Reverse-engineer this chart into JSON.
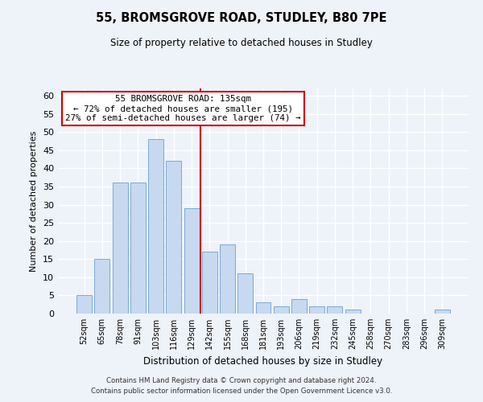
{
  "title": "55, BROMSGROVE ROAD, STUDLEY, B80 7PE",
  "subtitle": "Size of property relative to detached houses in Studley",
  "xlabel": "Distribution of detached houses by size in Studley",
  "ylabel": "Number of detached properties",
  "bar_labels": [
    "52sqm",
    "65sqm",
    "78sqm",
    "91sqm",
    "103sqm",
    "116sqm",
    "129sqm",
    "142sqm",
    "155sqm",
    "168sqm",
    "181sqm",
    "193sqm",
    "206sqm",
    "219sqm",
    "232sqm",
    "245sqm",
    "258sqm",
    "270sqm",
    "283sqm",
    "296sqm",
    "309sqm"
  ],
  "bar_values": [
    5,
    15,
    36,
    36,
    48,
    42,
    29,
    17,
    19,
    11,
    3,
    2,
    4,
    2,
    2,
    1,
    0,
    0,
    0,
    0,
    1
  ],
  "bar_color": "#c6d9f0",
  "bar_edge_color": "#7aaad4",
  "vline_x": 6.5,
  "vline_color": "#cc0000",
  "annotation_title": "55 BROMSGROVE ROAD: 135sqm",
  "annotation_line1": "← 72% of detached houses are smaller (195)",
  "annotation_line2": "27% of semi-detached houses are larger (74) →",
  "annotation_box_color": "#ffffff",
  "annotation_box_edge": "#cc0000",
  "ylim": [
    0,
    62
  ],
  "yticks": [
    0,
    5,
    10,
    15,
    20,
    25,
    30,
    35,
    40,
    45,
    50,
    55,
    60
  ],
  "footer1": "Contains HM Land Registry data © Crown copyright and database right 2024.",
  "footer2": "Contains public sector information licensed under the Open Government Licence v3.0.",
  "bg_color": "#eef2f9"
}
